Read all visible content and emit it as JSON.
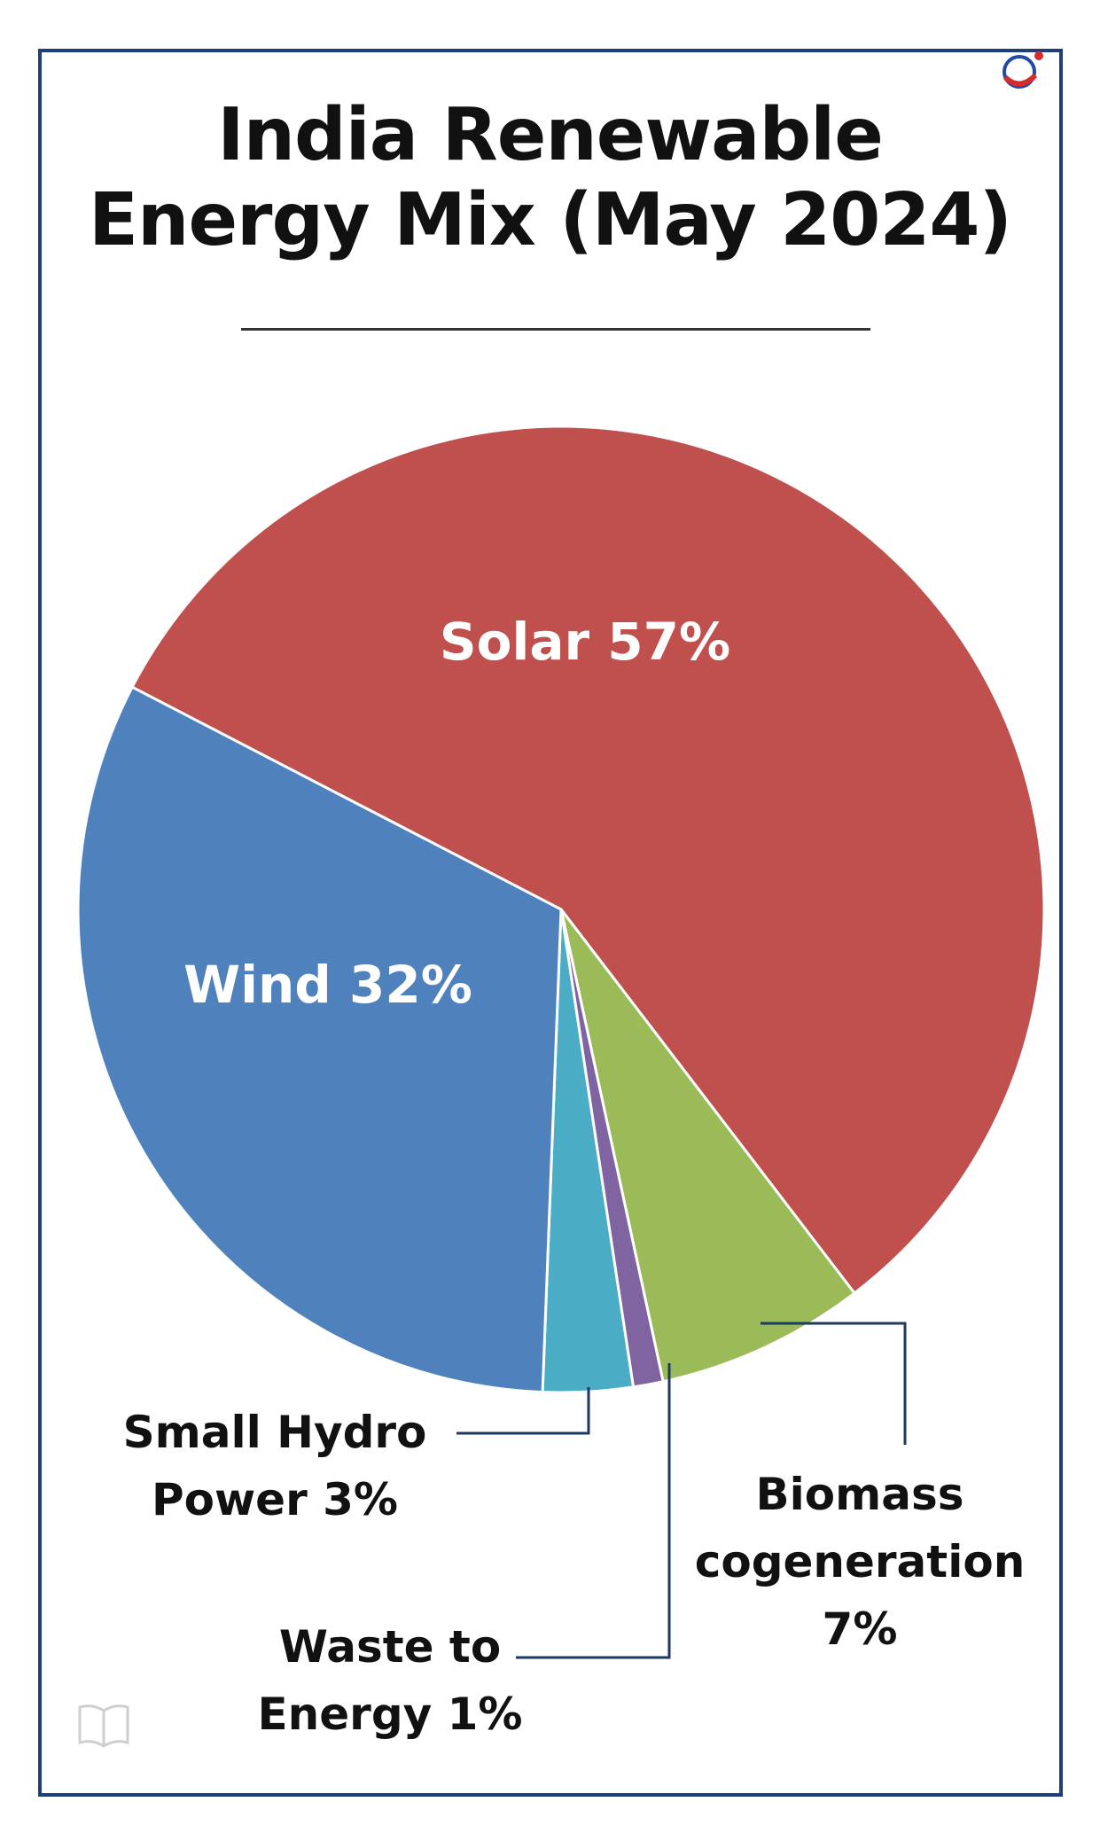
{
  "title_line1": "India Renewable",
  "title_line2": "Energy Mix (May 2024)",
  "chart_data": {
    "type": "pie",
    "title": "India Renewable Energy Mix (May 2024)",
    "slices": [
      {
        "name": "Solar",
        "value": 57,
        "label": "Solar 57%",
        "color": "#c0504d"
      },
      {
        "name": "Biomass cogeneration",
        "value": 7,
        "label": "Biomass cogeneration 7%",
        "color": "#9bbb59"
      },
      {
        "name": "Waste to Energy",
        "value": 1,
        "label": "Waste to Energy 1%",
        "color": "#8064a2"
      },
      {
        "name": "Small Hydro Power",
        "value": 3,
        "label": "Small Hydro Power 3%",
        "color": "#4bacc6"
      },
      {
        "name": "Wind",
        "value": 32,
        "label": "Wind 32%",
        "color": "#4f81bd"
      }
    ]
  },
  "labels": {
    "solar": "Solar 57%",
    "wind": "Wind 32%",
    "hydro_l1": "Small Hydro",
    "hydro_l2": "Power 3%",
    "waste_l1": "Waste to",
    "waste_l2": "Energy 1%",
    "biomass_l1": "Biomass",
    "biomass_l2": "cogeneration",
    "biomass_l3": "7%"
  },
  "colors": {
    "frame": "#1f3f7a",
    "leader": "#1f3a5f"
  },
  "icons": {
    "logo": "brand-logo-icon",
    "book": "book-icon"
  }
}
